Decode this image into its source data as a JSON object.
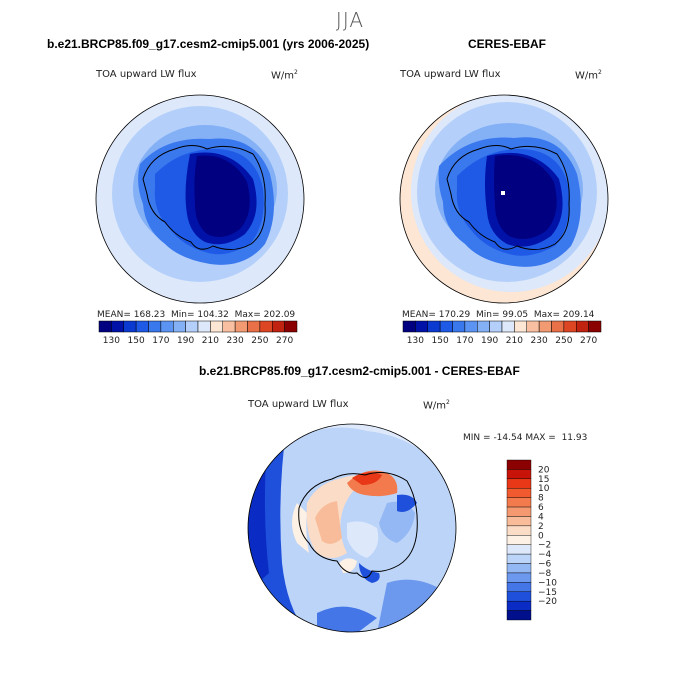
{
  "page": {
    "season": "JJA",
    "variable_label": "TOA upward LW flux",
    "units_label": "W/m",
    "units_exponent": "2"
  },
  "chart_data": [
    {
      "type": "heatmap",
      "projection": "south-polar stereographic",
      "title": "b.e21.BRCP85.f09_g17.cesm2-cmip5.001 (yrs 2006-2025)",
      "subtitle": "TOA upward LW flux",
      "units": "W/m2",
      "stats": {
        "mean_label": "MEAN=",
        "mean": "168.23",
        "min_label": "Min=",
        "min": "104.32",
        "max_label": "Max=",
        "max": "202.09"
      },
      "colorbar_ticks": [
        "130",
        "150",
        "170",
        "190",
        "210",
        "230",
        "250",
        "270"
      ],
      "colorbar_colors": [
        "#000080",
        "#0012a8",
        "#0a3ad0",
        "#1e5ae6",
        "#3a78ee",
        "#5b94f2",
        "#84b0f6",
        "#b4d0fa",
        "#dde8fb",
        "#fde6d4",
        "#f8c0a0",
        "#f29a72",
        "#ea7048",
        "#dc4622",
        "#c02410",
        "#8b0000"
      ],
      "colorbar_position": "bottom"
    },
    {
      "type": "heatmap",
      "projection": "south-polar stereographic",
      "title": "CERES-EBAF",
      "subtitle": "TOA upward LW flux",
      "units": "W/m2",
      "stats": {
        "mean_label": "MEAN=",
        "mean": "170.29",
        "min_label": "Min=",
        "min": "99.05",
        "max_label": "Max=",
        "max": "209.14"
      },
      "colorbar_ticks": [
        "130",
        "150",
        "170",
        "190",
        "210",
        "230",
        "250",
        "270"
      ],
      "colorbar_colors": [
        "#000080",
        "#0012a8",
        "#0a3ad0",
        "#1e5ae6",
        "#3a78ee",
        "#5b94f2",
        "#84b0f6",
        "#b4d0fa",
        "#dde8fb",
        "#fde6d4",
        "#f8c0a0",
        "#f29a72",
        "#ea7048",
        "#dc4622",
        "#c02410",
        "#8b0000"
      ],
      "colorbar_position": "bottom"
    },
    {
      "type": "heatmap",
      "projection": "south-polar stereographic",
      "title": "b.e21.BRCP85.f09_g17.cesm2-cmip5.001 - CERES-EBAF",
      "subtitle": "TOA upward LW flux",
      "units": "W/m2",
      "stats": {
        "min_label": "MIN =",
        "min": "-14.54",
        "max_label": "MAX =",
        "max": "11.93"
      },
      "colorbar_ticks": [
        "20",
        "15",
        "10",
        "8",
        "6",
        "4",
        "2",
        "0",
        "−2",
        "−4",
        "−6",
        "−8",
        "−10",
        "−15",
        "−20"
      ],
      "colorbar_colors": [
        "#8b0000",
        "#c81408",
        "#e83818",
        "#f05a2e",
        "#f27a4c",
        "#f59a70",
        "#f8bc9a",
        "#fbdcc6",
        "#fdf0e4",
        "#dde8fb",
        "#bcd4f8",
        "#94b8f4",
        "#6c98ee",
        "#4476e8",
        "#1e50dc",
        "#0a2cc4",
        "#00108c"
      ],
      "colorbar_position": "right"
    }
  ]
}
